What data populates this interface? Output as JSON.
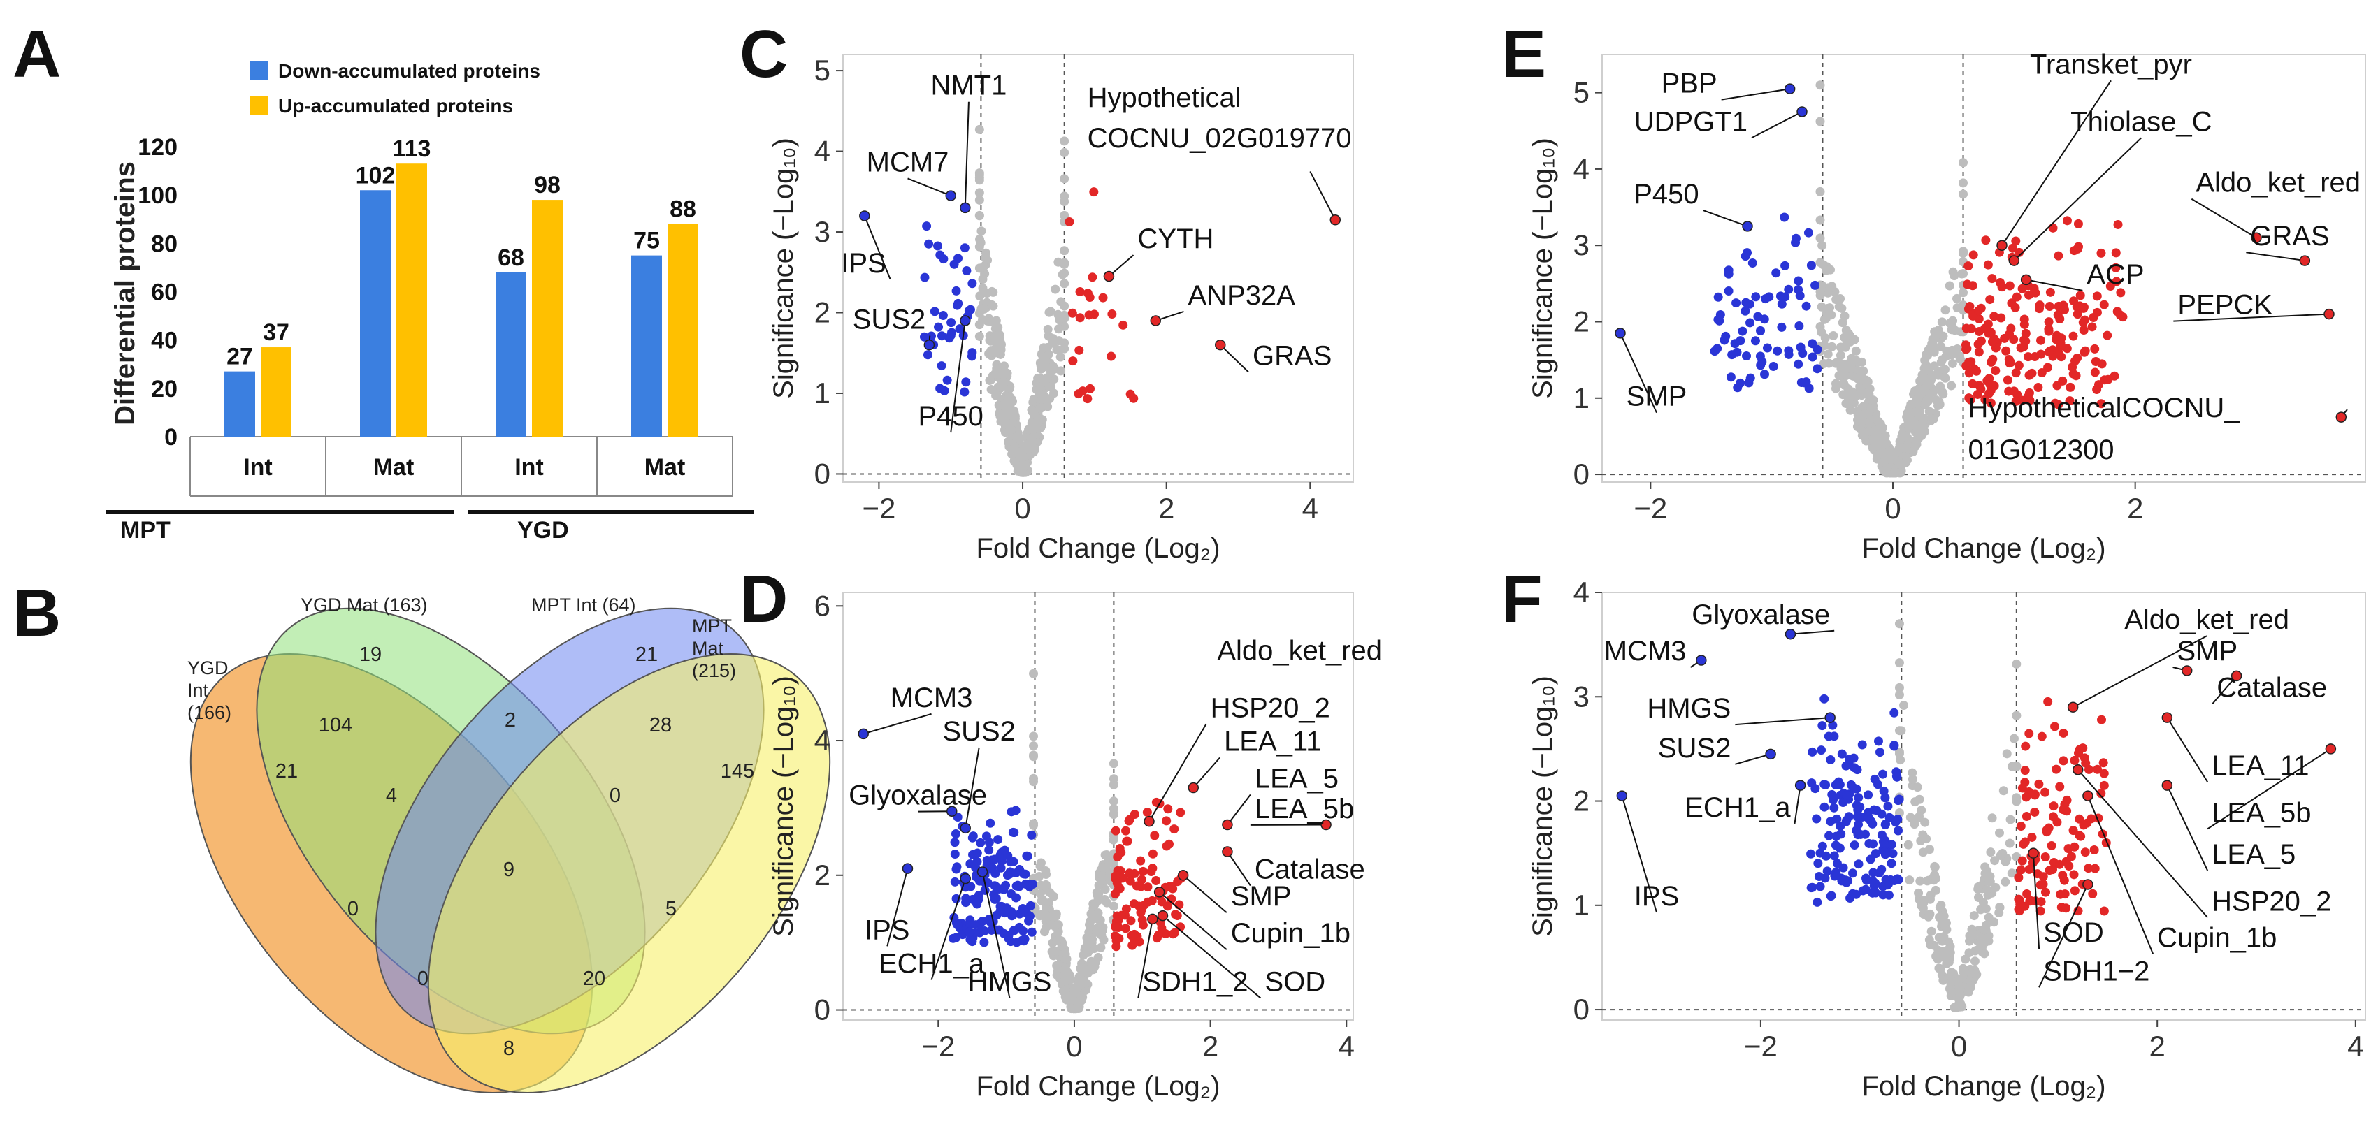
{
  "panels": {
    "A": "A",
    "B": "B",
    "C": "C",
    "D": "D",
    "E": "E",
    "F": "F"
  },
  "chart_data": [
    {
      "id": "A",
      "type": "bar",
      "ylabel": "Differential proteins",
      "ylim": [
        0,
        120
      ],
      "yticks": [
        0,
        20,
        40,
        60,
        80,
        100,
        120
      ],
      "categories": [
        "Int",
        "Mat",
        "Int",
        "Mat"
      ],
      "groups": [
        {
          "label": "MPT",
          "categories": [
            0,
            1
          ]
        },
        {
          "label": "YGD",
          "categories": [
            2,
            3
          ]
        }
      ],
      "series": [
        {
          "name": "Down-accumulated proteins",
          "color": "#3b7fe0",
          "values": [
            27,
            102,
            68,
            75
          ]
        },
        {
          "name": "Up-accumulated proteins",
          "color": "#ffc000",
          "values": [
            37,
            113,
            98,
            88
          ]
        }
      ]
    },
    {
      "id": "B",
      "type": "venn",
      "sets": [
        {
          "label": "YGD Int (166)",
          "lines": [
            "YGD",
            "Int",
            "(166)"
          ],
          "color": "#f39c3c"
        },
        {
          "label": "YGD Mat (163)",
          "lines": [
            "YGD Mat (163)"
          ],
          "color": "#8fe07a"
        },
        {
          "label": "MPT Int (64)",
          "lines": [
            "MPT Int (64)"
          ],
          "color": "#6d86f0"
        },
        {
          "label": "MPT Mat (215)",
          "lines": [
            "MPT",
            "Mat",
            "(215)"
          ],
          "color": "#f6f06a"
        }
      ],
      "regions": [
        {
          "sets": [
            "YGD Int"
          ],
          "count": 21
        },
        {
          "sets": [
            "YGD Mat"
          ],
          "count": 19
        },
        {
          "sets": [
            "MPT Int"
          ],
          "count": 21
        },
        {
          "sets": [
            "MPT Mat"
          ],
          "count": 145
        },
        {
          "sets": [
            "YGD Int",
            "YGD Mat"
          ],
          "count": 104
        },
        {
          "sets": [
            "YGD Mat",
            "MPT Int"
          ],
          "count": 2
        },
        {
          "sets": [
            "MPT Int",
            "MPT Mat"
          ],
          "count": 28
        },
        {
          "sets": [
            "YGD Int",
            "YGD Mat",
            "MPT Int"
          ],
          "count": 4
        },
        {
          "sets": [
            "YGD Mat",
            "MPT Int",
            "MPT Mat"
          ],
          "count": 0
        },
        {
          "sets": [
            "all"
          ],
          "count": 9
        },
        {
          "sets": [
            "YGD Int",
            "MPT Int"
          ],
          "count": 0
        },
        {
          "sets": [
            "YGD Mat",
            "MPT Mat"
          ],
          "count": 5
        },
        {
          "sets": [
            "YGD Int",
            "MPT Int",
            "MPT Mat"
          ],
          "count": 0
        },
        {
          "sets": [
            "YGD Int",
            "YGD Mat",
            "MPT Mat"
          ],
          "count": 20
        },
        {
          "sets": [
            "YGD Int",
            "MPT Mat"
          ],
          "count": 8
        }
      ]
    },
    {
      "id": "C",
      "type": "scatter",
      "xlabel": "Fold Change (Log₂)",
      "ylabel": "Significance (−Log₁₀)",
      "xlim": [
        -2.5,
        4.6
      ],
      "ylim": [
        -0.1,
        5.2
      ],
      "xticks": [
        -2,
        0,
        2,
        4
      ],
      "yticks": [
        0,
        1,
        2,
        3,
        4,
        5
      ],
      "xtick_labels": [
        "−2",
        "0",
        "2",
        "4"
      ],
      "thresholds": {
        "fc": 0.58,
        "sig": 0
      },
      "cloud": {
        "seed": 11,
        "n_gray": 420,
        "n_blue": 40,
        "n_red": 22,
        "blue_x": [
          -1.4,
          -0.7
        ],
        "red_x": [
          0.65,
          1.6
        ],
        "sig_max": 3.6
      },
      "labels": [
        {
          "text": "NMT1",
          "x": -0.8,
          "y": 3.3,
          "lx": -0.75,
          "ly": 4.7,
          "color": "#2a35d6"
        },
        {
          "text": "MCM7",
          "x": -1.0,
          "y": 3.45,
          "lx": -1.6,
          "ly": 3.75,
          "color": "#2a35d6"
        },
        {
          "text": "IPS",
          "x": -2.2,
          "y": 3.2,
          "lx": -1.9,
          "ly": 2.5,
          "color": "#2a35d6",
          "anchor": "end"
        },
        {
          "text": "SUS2",
          "x": -1.3,
          "y": 1.6,
          "lx": -1.35,
          "ly": 1.8,
          "color": "#2a35d6",
          "anchor": "end"
        },
        {
          "text": "P450",
          "x": -0.8,
          "y": 1.9,
          "lx": -1.0,
          "ly": 0.6,
          "color": "#2a35d6"
        },
        {
          "text": "Hypothetical",
          "x": 0,
          "y": 0,
          "lx": 0.9,
          "ly": 4.55,
          "anchor": "start",
          "noline": true
        },
        {
          "text": "COCNU_02G019770",
          "x": 4.35,
          "y": 3.15,
          "lx": 0.9,
          "ly": 4.05,
          "ax": 4.0,
          "ay": 3.75,
          "anchor": "start"
        },
        {
          "text": "CYTH",
          "x": 1.2,
          "y": 2.45,
          "lx": 1.6,
          "ly": 2.8,
          "color": "#e22727",
          "anchor": "start"
        },
        {
          "text": "ANP32A",
          "x": 1.85,
          "y": 1.9,
          "lx": 2.3,
          "ly": 2.1,
          "color": "#e22727",
          "anchor": "start"
        },
        {
          "text": "GRAS",
          "x": 2.75,
          "y": 1.6,
          "lx": 3.2,
          "ly": 1.35,
          "color": "#e22727",
          "anchor": "start"
        }
      ]
    },
    {
      "id": "D",
      "type": "scatter",
      "xlabel": "Fold Change (Log₂)",
      "ylabel": "Significance (−Log₁₀)",
      "xlim": [
        -3.4,
        4.1
      ],
      "ylim": [
        -0.15,
        6.2
      ],
      "xticks": [
        -2,
        0,
        2,
        4
      ],
      "yticks": [
        0,
        2,
        4,
        6
      ],
      "xtick_labels": [
        "−2",
        "0",
        "2",
        "4"
      ],
      "thresholds": {
        "fc": 0.58,
        "sig": 0
      },
      "cloud": {
        "seed": 23,
        "n_gray": 330,
        "n_blue": 150,
        "n_red": 95,
        "blue_x": [
          -1.8,
          -0.6
        ],
        "red_x": [
          0.6,
          1.6
        ],
        "sig_max": 3.2
      },
      "labels": [
        {
          "text": "Aldo_ket_red",
          "x": 0,
          "y": 0,
          "lx": 2.1,
          "ly": 5.2,
          "anchor": "start",
          "noline": true
        },
        {
          "text": "MCM3",
          "x": -3.1,
          "y": 4.1,
          "lx": -2.1,
          "ly": 4.5,
          "color": "#2a35d6"
        },
        {
          "text": "SUS2",
          "x": -1.6,
          "y": 2.7,
          "lx": -1.4,
          "ly": 4.0,
          "color": "#2a35d6"
        },
        {
          "text": "Glyoxalase",
          "x": -1.8,
          "y": 2.95,
          "lx": -2.3,
          "ly": 3.05,
          "color": "#2a35d6"
        },
        {
          "text": "IPS",
          "x": -2.45,
          "y": 2.1,
          "lx": -2.75,
          "ly": 1.05,
          "color": "#2a35d6"
        },
        {
          "text": "ECH1_a",
          "x": -1.6,
          "y": 1.95,
          "lx": -2.1,
          "ly": 0.55,
          "color": "#2a35d6"
        },
        {
          "text": "HMGS",
          "x": -1.35,
          "y": 2.05,
          "lx": -0.95,
          "ly": 0.28,
          "color": "#2a35d6"
        },
        {
          "text": "HSP20_2",
          "x": 1.1,
          "y": 2.8,
          "lx": 2.0,
          "ly": 4.35,
          "color": "#e22727",
          "anchor": "start"
        },
        {
          "text": "LEA_11",
          "x": 1.75,
          "y": 3.3,
          "lx": 2.2,
          "ly": 3.85,
          "color": "#e22727",
          "anchor": "start"
        },
        {
          "text": "LEA_5",
          "x": 2.25,
          "y": 2.75,
          "lx": 2.65,
          "ly": 3.3,
          "color": "#e22727",
          "anchor": "start"
        },
        {
          "text": "LEA_5b",
          "x": 3.7,
          "y": 2.75,
          "lx": 2.65,
          "ly": 2.85,
          "anchor": "start"
        },
        {
          "text": "Catalase",
          "x": 2.25,
          "y": 2.35,
          "lx": 2.65,
          "ly": 1.95,
          "color": "#e22727",
          "anchor": "start"
        },
        {
          "text": "SMP",
          "x": 1.6,
          "y": 2.0,
          "lx": 2.3,
          "ly": 1.55,
          "color": "#e22727",
          "anchor": "start"
        },
        {
          "text": "Cupin_1b",
          "x": 1.25,
          "y": 1.75,
          "lx": 2.3,
          "ly": 1.0,
          "color": "#e22727",
          "anchor": "start"
        },
        {
          "text": "SDH1_2",
          "x": 1.15,
          "y": 1.35,
          "lx": 1.0,
          "ly": 0.28,
          "color": "#e22727",
          "anchor": "start"
        },
        {
          "text": "SOD",
          "x": 1.3,
          "y": 1.4,
          "lx": 2.8,
          "ly": 0.28,
          "color": "#e22727",
          "anchor": "start"
        }
      ]
    },
    {
      "id": "E",
      "type": "scatter",
      "xlabel": "Fold Change (Log₂)",
      "ylabel": "Significance (−Log₁₀)",
      "xlim": [
        -2.4,
        3.9
      ],
      "ylim": [
        -0.1,
        5.5
      ],
      "xticks": [
        -2,
        0,
        2
      ],
      "yticks": [
        0,
        1,
        2,
        3,
        4,
        5
      ],
      "xtick_labels": [
        "−2",
        "0",
        "2"
      ],
      "thresholds": {
        "fc": 0.58,
        "sig": 0
      },
      "cloud": {
        "seed": 37,
        "n_gray": 470,
        "n_blue": 75,
        "n_red": 190,
        "blue_x": [
          -1.5,
          -0.6
        ],
        "red_x": [
          0.6,
          1.9
        ],
        "sig_max": 3.6
      },
      "labels": [
        {
          "text": "PBP",
          "x": -0.85,
          "y": 5.05,
          "lx": -1.45,
          "ly": 5.0,
          "color": "#2a35d6",
          "anchor": "end"
        },
        {
          "text": "UDPGT1",
          "x": -0.75,
          "y": 4.75,
          "lx": -1.2,
          "ly": 4.5,
          "color": "#2a35d6",
          "anchor": "end"
        },
        {
          "text": "P450",
          "x": -1.2,
          "y": 3.25,
          "lx": -1.6,
          "ly": 3.55,
          "color": "#2a35d6",
          "anchor": "end"
        },
        {
          "text": "SMP",
          "x": -2.25,
          "y": 1.85,
          "lx": -1.95,
          "ly": 0.9,
          "color": "#2a35d6"
        },
        {
          "text": "Transket_pyr",
          "x": 0.9,
          "y": 3.0,
          "lx": 1.8,
          "ly": 5.25,
          "color": "#e22727"
        },
        {
          "text": "Thiolase_C",
          "x": 1.0,
          "y": 2.8,
          "lx": 2.05,
          "ly": 4.5,
          "color": "#e22727"
        },
        {
          "text": "Aldo_ket_red",
          "x": 3.0,
          "y": 3.1,
          "lx": 2.5,
          "ly": 3.7,
          "color": "#e22727",
          "anchor": "start"
        },
        {
          "text": "GRAS",
          "x": 3.4,
          "y": 2.8,
          "lx": 2.95,
          "ly": 3.0,
          "color": "#e22727",
          "anchor": "start"
        },
        {
          "text": "ACP",
          "x": 1.1,
          "y": 2.55,
          "lx": 1.6,
          "ly": 2.5,
          "color": "#e22727",
          "anchor": "start"
        },
        {
          "text": "PEPCK",
          "x": 3.6,
          "y": 2.1,
          "lx": 2.35,
          "ly": 2.1,
          "color": "#e22727",
          "anchor": "start"
        },
        {
          "text": "HypotheticalCOCNU_",
          "x": 3.7,
          "y": 0.75,
          "lx": 0.62,
          "ly": 0.75,
          "ax": 3.75,
          "ay": 0.85,
          "anchor": "start"
        },
        {
          "text": "01G012300",
          "x": 0,
          "y": 0,
          "lx": 0.62,
          "ly": 0.2,
          "anchor": "start",
          "noline": true
        }
      ]
    },
    {
      "id": "F",
      "type": "scatter",
      "xlabel": "Fold Change (Log₂)",
      "ylabel": "Significance (−Log₁₀)",
      "xlim": [
        -3.6,
        4.1
      ],
      "ylim": [
        -0.1,
        4.0
      ],
      "xticks": [
        -2,
        0,
        2,
        4
      ],
      "yticks": [
        0,
        1,
        2,
        3,
        4
      ],
      "xtick_labels": [
        "−2",
        "0",
        "2",
        "4"
      ],
      "thresholds": {
        "fc": 0.58,
        "sig": 0
      },
      "cloud": {
        "seed": 53,
        "n_gray": 230,
        "n_blue": 160,
        "n_red": 110,
        "blue_x": [
          -1.5,
          -0.6
        ],
        "red_x": [
          0.6,
          1.5
        ],
        "sig_max": 3.1
      },
      "labels": [
        {
          "text": "Glyoxalase",
          "x": -1.7,
          "y": 3.6,
          "lx": -1.3,
          "ly": 3.7,
          "color": "#2a35d6",
          "anchor": "end"
        },
        {
          "text": "MCM3",
          "x": -2.6,
          "y": 3.35,
          "lx": -2.75,
          "ly": 3.35,
          "color": "#2a35d6",
          "anchor": "end"
        },
        {
          "text": "HMGS",
          "x": -1.3,
          "y": 2.8,
          "lx": -2.3,
          "ly": 2.8,
          "color": "#2a35d6",
          "anchor": "end"
        },
        {
          "text": "SUS2",
          "x": -1.9,
          "y": 2.45,
          "lx": -2.3,
          "ly": 2.42,
          "color": "#2a35d6",
          "anchor": "end"
        },
        {
          "text": "ECH1_a",
          "x": -1.6,
          "y": 2.15,
          "lx": -1.7,
          "ly": 1.85,
          "color": "#2a35d6",
          "anchor": "end"
        },
        {
          "text": "IPS",
          "x": -3.4,
          "y": 2.05,
          "lx": -3.05,
          "ly": 1.0,
          "color": "#2a35d6"
        },
        {
          "text": "Aldo_ket_red",
          "x": 1.15,
          "y": 2.9,
          "lx": 2.5,
          "ly": 3.65,
          "color": "#e22727"
        },
        {
          "text": "SMP",
          "x": 2.3,
          "y": 3.25,
          "lx": 2.2,
          "ly": 3.35,
          "color": "#e22727",
          "anchor": "start"
        },
        {
          "text": "Catalase",
          "x": 2.8,
          "y": 3.2,
          "lx": 2.6,
          "ly": 3.0,
          "color": "#e22727",
          "anchor": "start"
        },
        {
          "text": "LEA_11",
          "x": 2.1,
          "y": 2.8,
          "lx": 2.55,
          "ly": 2.25,
          "color": "#e22727",
          "anchor": "start"
        },
        {
          "text": "LEA_5b",
          "x": 3.75,
          "y": 2.5,
          "lx": 2.55,
          "ly": 1.8,
          "anchor": "start"
        },
        {
          "text": "LEA_5",
          "x": 2.1,
          "y": 2.15,
          "lx": 2.55,
          "ly": 1.4,
          "color": "#e22727",
          "anchor": "start"
        },
        {
          "text": "HSP20_2",
          "x": 1.2,
          "y": 2.3,
          "lx": 2.55,
          "ly": 0.95,
          "color": "#e22727",
          "anchor": "start"
        },
        {
          "text": "Cupin_1b",
          "x": 1.3,
          "y": 2.05,
          "lx": 2.0,
          "ly": 0.6,
          "color": "#e22727",
          "anchor": "start"
        },
        {
          "text": "SOD",
          "x": 0.75,
          "y": 1.5,
          "lx": 0.85,
          "ly": 0.65,
          "color": "#e22727",
          "anchor": "start"
        },
        {
          "text": "SDH1−2",
          "x": 1.3,
          "y": 1.2,
          "lx": 0.85,
          "ly": 0.28,
          "color": "#e22727",
          "anchor": "start"
        }
      ]
    }
  ],
  "colors": {
    "down": "#2a35d6",
    "up": "#e22727",
    "ns": "#bdbdbd",
    "bar_down": "#3b7fe0",
    "bar_up": "#ffc000"
  }
}
